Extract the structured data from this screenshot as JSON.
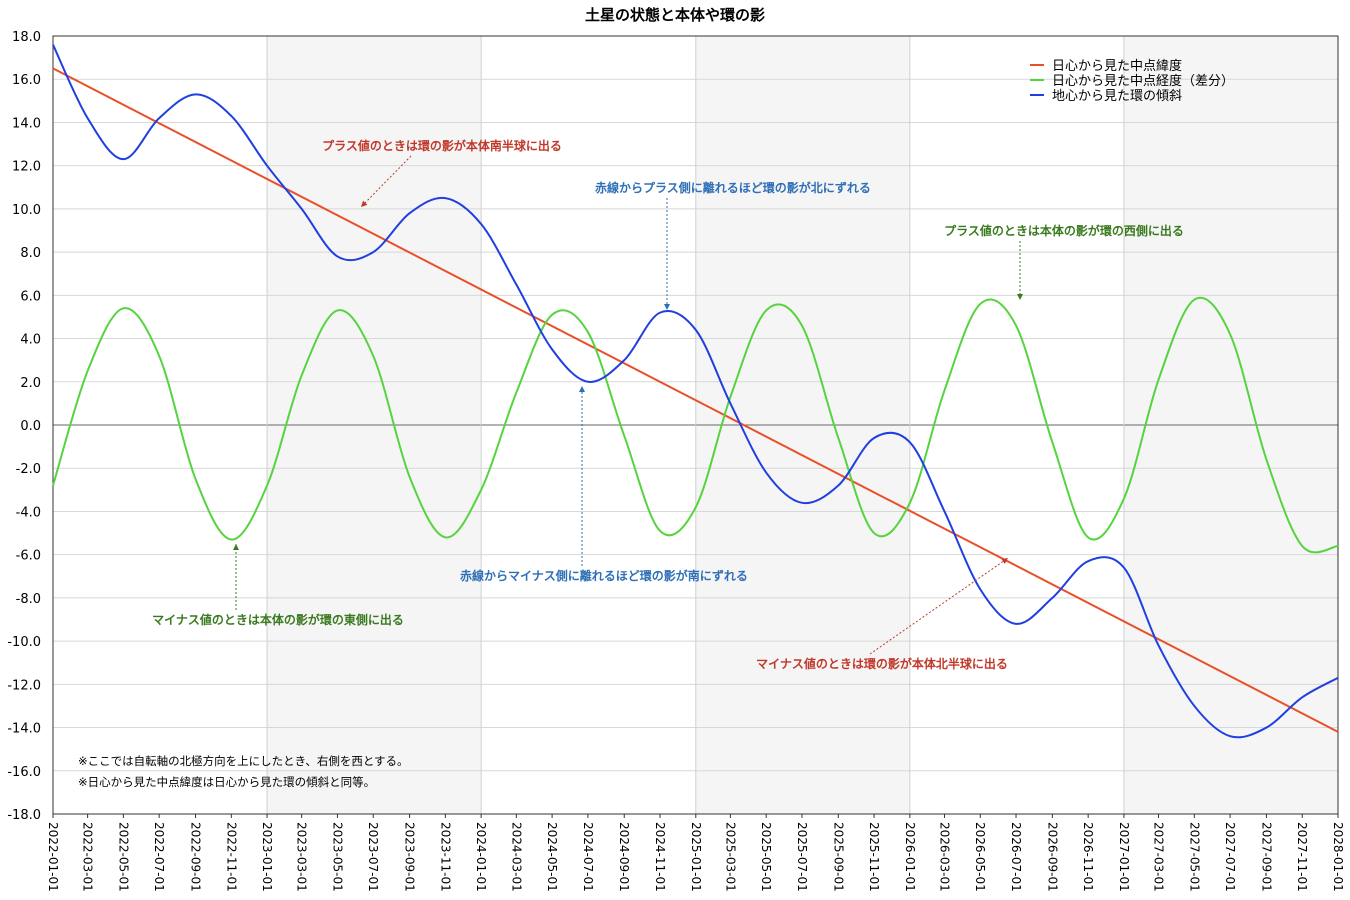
{
  "chart_data": {
    "type": "line",
    "title": "土星の状態と本体や環の影",
    "xlabel": "",
    "ylabel": "",
    "x_range": [
      "2022-01-01",
      "2028-01-01"
    ],
    "ylim": [
      -18.0,
      18.0
    ],
    "y_ticks": [
      "18.0",
      "16.0",
      "14.0",
      "12.0",
      "10.0",
      "8.0",
      "6.0",
      "4.0",
      "2.0",
      "0.0",
      "-2.0",
      "-4.0",
      "-6.0",
      "-8.0",
      "-10.0",
      "-12.0",
      "-14.0",
      "-16.0",
      "-18.0"
    ],
    "x_ticks": [
      "2022-01-01",
      "2022-03-01",
      "2022-05-01",
      "2022-07-01",
      "2022-09-01",
      "2022-11-01",
      "2023-01-01",
      "2023-03-01",
      "2023-05-01",
      "2023-07-01",
      "2023-09-01",
      "2023-11-01",
      "2024-01-01",
      "2024-03-01",
      "2024-05-01",
      "2024-07-01",
      "2024-09-01",
      "2024-11-01",
      "2025-01-01",
      "2025-03-01",
      "2025-05-01",
      "2025-07-01",
      "2025-09-01",
      "2025-11-01",
      "2026-01-01",
      "2026-03-01",
      "2026-05-01",
      "2026-07-01",
      "2026-09-01",
      "2026-11-01",
      "2027-01-01",
      "2027-03-01",
      "2027-05-01",
      "2027-07-01",
      "2027-09-01",
      "2027-11-01",
      "2028-01-01"
    ],
    "grid": true,
    "legend_position": "top-right",
    "shaded_years": [
      "2023",
      "2025",
      "2027"
    ],
    "series": [
      {
        "name": "日心から見た中点緯度",
        "color": "#e8502a",
        "x": [
          "2022-01-01",
          "2028-01-01"
        ],
        "y": [
          16.5,
          -14.2
        ]
      },
      {
        "name": "日心から見た中点経度（差分）",
        "color": "#55d43f",
        "x": [
          "2022-01-01",
          "2022-03-01",
          "2022-05-01",
          "2022-07-01",
          "2022-09-01",
          "2022-11-01",
          "2023-01-01",
          "2023-03-01",
          "2023-05-01",
          "2023-07-01",
          "2023-09-01",
          "2023-11-01",
          "2024-01-01",
          "2024-03-01",
          "2024-05-01",
          "2024-07-01",
          "2024-09-01",
          "2024-11-01",
          "2025-01-01",
          "2025-03-01",
          "2025-05-01",
          "2025-07-01",
          "2025-09-01",
          "2025-11-01",
          "2026-01-01",
          "2026-03-01",
          "2026-05-01",
          "2026-07-01",
          "2026-09-01",
          "2026-11-01",
          "2027-01-01",
          "2027-03-01",
          "2027-05-01",
          "2027-07-01",
          "2027-09-01",
          "2027-11-01",
          "2028-01-01"
        ],
        "y": [
          -2.8,
          2.5,
          5.4,
          3.2,
          -2.5,
          -5.3,
          -2.8,
          2.3,
          5.3,
          3.2,
          -2.4,
          -5.2,
          -3.0,
          1.5,
          5.1,
          4.3,
          -0.5,
          -4.9,
          -3.8,
          1.3,
          5.3,
          4.6,
          -0.6,
          -5.0,
          -3.6,
          1.6,
          5.6,
          4.6,
          -0.8,
          -5.2,
          -3.4,
          2.1,
          5.8,
          4.2,
          -1.6,
          -5.6,
          -5.6
        ]
      },
      {
        "name": "地心から見た環の傾斜",
        "color": "#1f3fe0",
        "x": [
          "2022-01-01",
          "2022-03-01",
          "2022-05-01",
          "2022-07-01",
          "2022-09-01",
          "2022-11-01",
          "2023-01-01",
          "2023-03-01",
          "2023-05-01",
          "2023-07-01",
          "2023-09-01",
          "2023-11-01",
          "2024-01-01",
          "2024-03-01",
          "2024-05-01",
          "2024-07-01",
          "2024-09-01",
          "2024-11-01",
          "2025-01-01",
          "2025-03-01",
          "2025-05-01",
          "2025-07-01",
          "2025-09-01",
          "2025-11-01",
          "2026-01-01",
          "2026-03-01",
          "2026-05-01",
          "2026-07-01",
          "2026-09-01",
          "2026-11-01",
          "2027-01-01",
          "2027-03-01",
          "2027-05-01",
          "2027-07-01",
          "2027-09-01",
          "2027-11-01",
          "2028-01-01"
        ],
        "y": [
          17.6,
          14.2,
          12.3,
          14.2,
          15.3,
          14.3,
          12.0,
          10.0,
          7.8,
          8.0,
          9.8,
          10.5,
          9.3,
          6.5,
          3.5,
          2.0,
          3.0,
          5.2,
          4.4,
          1.0,
          -2.2,
          -3.6,
          -2.8,
          -0.6,
          -0.8,
          -4.0,
          -7.6,
          -9.2,
          -8.0,
          -6.3,
          -6.6,
          -10.2,
          -13.0,
          -14.4,
          -14.0,
          -12.6,
          -11.7
        ]
      }
    ],
    "annotations": [
      {
        "text": "プラス値のときは環の影が本体南半球に出る",
        "color": "#c0392b"
      },
      {
        "text": "赤線からプラス側に離れるほど環の影が北にずれる",
        "color": "#2e6fb5"
      },
      {
        "text": "プラス値のときは本体の影が環の西側に出る",
        "color": "#3a7a1f"
      },
      {
        "text": "赤線からマイナス側に離れるほど環の影が南にずれる",
        "color": "#2e6fb5"
      },
      {
        "text": "マイナス値のときは本体の影が環の東側に出る",
        "color": "#3a7a1f"
      },
      {
        "text": "マイナス値のときは環の影が本体北半球に出る",
        "color": "#c0392b"
      }
    ],
    "notes": [
      "※ここでは自転軸の北極方向を上にしたとき、右側を西とする。",
      "※日心から見た中点緯度は日心から見た環の傾斜と同等。"
    ]
  }
}
